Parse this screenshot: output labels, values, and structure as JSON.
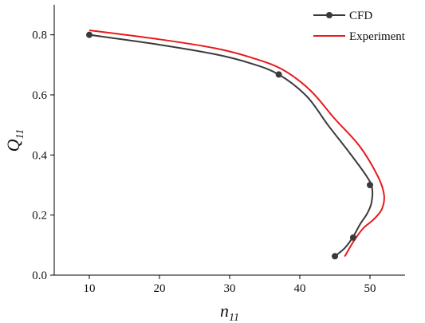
{
  "chart_data": {
    "type": "line",
    "title": "",
    "xlabel": {
      "main": "n",
      "sub": "11"
    },
    "ylabel": {
      "main": "Q",
      "sub": "11"
    },
    "xlim": [
      5,
      55
    ],
    "ylim": [
      0,
      0.9
    ],
    "xticks": [
      10,
      20,
      30,
      40,
      50
    ],
    "yticks": [
      0.0,
      0.2,
      0.4,
      0.6,
      0.8
    ],
    "grid": false,
    "legend_position": "top-right",
    "series": [
      {
        "name": "CFD",
        "color": "#3a3a3a",
        "marker": "circle",
        "curve": [
          [
            10,
            0.8
          ],
          [
            20,
            0.767
          ],
          [
            28,
            0.735
          ],
          [
            33,
            0.705
          ],
          [
            37,
            0.668
          ],
          [
            41,
            0.595
          ],
          [
            44,
            0.5
          ],
          [
            47,
            0.41
          ],
          [
            49.5,
            0.33
          ],
          [
            50.3,
            0.29
          ],
          [
            50.2,
            0.24
          ],
          [
            49.6,
            0.205
          ],
          [
            48.6,
            0.17
          ],
          [
            47.6,
            0.128
          ],
          [
            46.4,
            0.09
          ],
          [
            45,
            0.063
          ]
        ],
        "points": [
          [
            10,
            0.8
          ],
          [
            37,
            0.668
          ],
          [
            50,
            0.3
          ],
          [
            47.6,
            0.125
          ],
          [
            45,
            0.063
          ]
        ]
      },
      {
        "name": "Experiment",
        "color": "#e8191c",
        "marker": "none",
        "curve": [
          [
            10,
            0.815
          ],
          [
            20,
            0.785
          ],
          [
            28,
            0.755
          ],
          [
            33,
            0.725
          ],
          [
            37.5,
            0.685
          ],
          [
            41.5,
            0.615
          ],
          [
            45,
            0.52
          ],
          [
            48.5,
            0.43
          ],
          [
            51.1,
            0.33
          ],
          [
            52,
            0.268
          ],
          [
            51.7,
            0.22
          ],
          [
            50.5,
            0.185
          ],
          [
            49,
            0.155
          ],
          [
            47.6,
            0.11
          ],
          [
            46.4,
            0.062
          ]
        ]
      }
    ]
  }
}
